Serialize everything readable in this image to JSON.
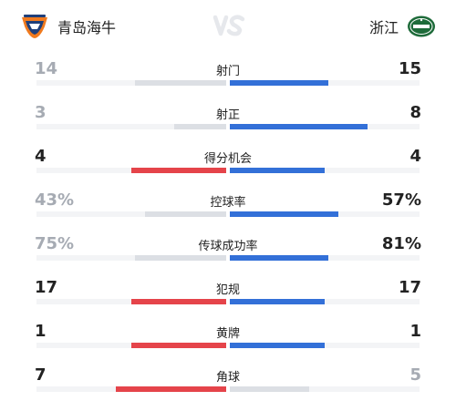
{
  "match": {
    "home_team": {
      "name": "青岛海牛",
      "logo_icon": "qingdao-hainiu-logo-icon"
    },
    "away_team": {
      "name": "浙江",
      "logo_icon": "zhejiang-logo-icon"
    },
    "vs_icon": "vs-icon"
  },
  "colors": {
    "home_bar": "#e5444a",
    "away_bar": "#3370d8",
    "muted_bar": "#dcdfe4",
    "win_text": "#222222",
    "lose_text": "#a6abb3",
    "track": "#f3f4f6"
  },
  "stats": [
    {
      "label": "射门",
      "home": "14",
      "away": "15",
      "home_value": 14,
      "away_value": 15,
      "leader": "away"
    },
    {
      "label": "射正",
      "home": "3",
      "away": "8",
      "home_value": 3,
      "away_value": 8,
      "leader": "away"
    },
    {
      "label": "得分机会",
      "home": "4",
      "away": "4",
      "home_value": 4,
      "away_value": 4,
      "leader": "tie"
    },
    {
      "label": "控球率",
      "home": "43%",
      "away": "57%",
      "home_value": 43,
      "away_value": 57,
      "leader": "away"
    },
    {
      "label": "传球成功率",
      "home": "75%",
      "away": "81%",
      "home_value": 75,
      "away_value": 81,
      "leader": "away"
    },
    {
      "label": "犯规",
      "home": "17",
      "away": "17",
      "home_value": 17,
      "away_value": 17,
      "leader": "tie"
    },
    {
      "label": "黄牌",
      "home": "1",
      "away": "1",
      "home_value": 1,
      "away_value": 1,
      "leader": "tie"
    },
    {
      "label": "角球",
      "home": "7",
      "away": "5",
      "home_value": 7,
      "away_value": 5,
      "leader": "home"
    }
  ]
}
